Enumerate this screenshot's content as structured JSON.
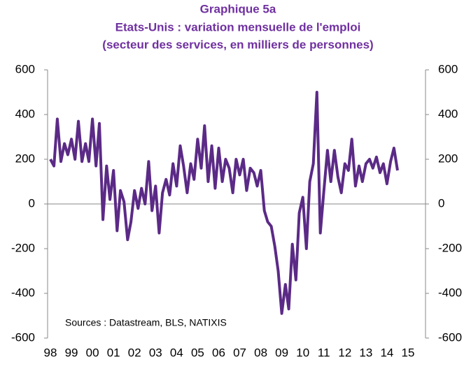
{
  "chart_data": {
    "type": "line",
    "title": [
      "Graphique 5a",
      "Etats-Unis : variation mensuelle de l'emploi",
      "(secteur des services, en milliers de personnes)"
    ],
    "annotation": "Sources : Datastream, BLS, NATIXIS",
    "x": [
      1998.0,
      1998.17,
      1998.33,
      1998.5,
      1998.67,
      1998.83,
      1999.0,
      1999.17,
      1999.33,
      1999.5,
      1999.67,
      1999.83,
      2000.0,
      2000.17,
      2000.33,
      2000.5,
      2000.67,
      2000.83,
      2001.0,
      2001.17,
      2001.33,
      2001.5,
      2001.67,
      2001.83,
      2002.0,
      2002.17,
      2002.33,
      2002.5,
      2002.67,
      2002.83,
      2003.0,
      2003.17,
      2003.33,
      2003.5,
      2003.67,
      2003.83,
      2004.0,
      2004.17,
      2004.33,
      2004.5,
      2004.67,
      2004.83,
      2005.0,
      2005.17,
      2005.33,
      2005.5,
      2005.67,
      2005.83,
      2006.0,
      2006.17,
      2006.33,
      2006.5,
      2006.67,
      2006.83,
      2007.0,
      2007.17,
      2007.33,
      2007.5,
      2007.67,
      2007.83,
      2008.0,
      2008.17,
      2008.33,
      2008.5,
      2008.67,
      2008.83,
      2009.0,
      2009.17,
      2009.33,
      2009.5,
      2009.67,
      2009.83,
      2010.0,
      2010.17,
      2010.33,
      2010.5,
      2010.67,
      2010.83,
      2011.0,
      2011.17,
      2011.33,
      2011.5,
      2011.67,
      2011.83,
      2012.0,
      2012.17,
      2012.33,
      2012.5,
      2012.67,
      2012.83,
      2013.0,
      2013.17,
      2013.33,
      2013.5,
      2013.67,
      2013.83,
      2014.0,
      2014.17,
      2014.33,
      2014.5
    ],
    "series": [
      {
        "color": "#5b2a86",
        "values": [
          200,
          170,
          380,
          190,
          270,
          220,
          290,
          200,
          370,
          190,
          270,
          190,
          380,
          170,
          360,
          -70,
          170,
          20,
          150,
          -120,
          60,
          10,
          -160,
          -80,
          60,
          -20,
          70,
          0,
          190,
          -30,
          80,
          -130,
          50,
          110,
          40,
          180,
          80,
          260,
          170,
          50,
          180,
          110,
          290,
          160,
          350,
          100,
          260,
          70,
          250,
          100,
          200,
          160,
          50,
          200,
          130,
          200,
          60,
          160,
          140,
          80,
          150,
          -30,
          -80,
          -100,
          -190,
          -300,
          -490,
          -360,
          -470,
          -180,
          -340,
          -40,
          30,
          -200,
          100,
          180,
          500,
          -130,
          60,
          240,
          100,
          240,
          120,
          50,
          180,
          150,
          290,
          80,
          170,
          100,
          180,
          200,
          160,
          210,
          140,
          180,
          90,
          190,
          250,
          150
        ]
      }
    ],
    "xlim": [
      1997.85,
      2015.85
    ],
    "xticks": [
      {
        "value": 1998,
        "label": "98"
      },
      {
        "value": 1999,
        "label": "99"
      },
      {
        "value": 2000,
        "label": "00"
      },
      {
        "value": 2001,
        "label": "01"
      },
      {
        "value": 2002,
        "label": "02"
      },
      {
        "value": 2003,
        "label": "03"
      },
      {
        "value": 2004,
        "label": "04"
      },
      {
        "value": 2005,
        "label": "05"
      },
      {
        "value": 2006,
        "label": "06"
      },
      {
        "value": 2007,
        "label": "07"
      },
      {
        "value": 2008,
        "label": "08"
      },
      {
        "value": 2009,
        "label": "09"
      },
      {
        "value": 2010,
        "label": "10"
      },
      {
        "value": 2011,
        "label": "11"
      },
      {
        "value": 2012,
        "label": "12"
      },
      {
        "value": 2013,
        "label": "13"
      },
      {
        "value": 2014,
        "label": "14"
      },
      {
        "value": 2015,
        "label": "15"
      }
    ],
    "ylim": [
      -600,
      600
    ],
    "yticks": [
      -600,
      -400,
      -200,
      0,
      200,
      400,
      600
    ],
    "y2lim": [
      -600,
      600
    ],
    "y2ticks": [
      -600,
      -400,
      -200,
      0,
      200,
      400,
      600
    ],
    "title_color": "#7030a0"
  }
}
